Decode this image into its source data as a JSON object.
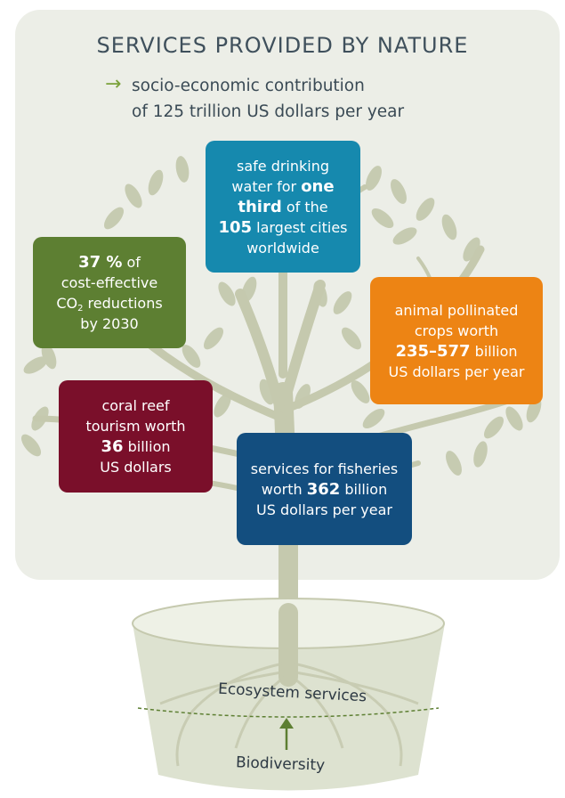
{
  "title": "SERVICES PROVIDED BY NATURE",
  "subtitle": {
    "line1": "socio-economic contribution",
    "line2": "of 125 trillion US dollars per year"
  },
  "boxes": {
    "water": {
      "line1": "safe drinking",
      "line2a": "water for ",
      "line2b": "one",
      "line3a": "third",
      "line3b": " of the",
      "line4a": "105",
      "line4b": " largest cities",
      "line5": "worldwide"
    },
    "co2": {
      "line1a": "37 %",
      "line1b": " of",
      "line2": "cost-effective",
      "line3a": "CO",
      "line3sub": "2",
      "line3b": " reductions",
      "line4": "by 2030"
    },
    "pollinated": {
      "line1": "animal pollinated",
      "line2": "crops worth",
      "line3a": "235–577",
      "line3b": " billion",
      "line4": "US dollars per year"
    },
    "coral": {
      "line1": "coral reef",
      "line2": "tourism worth",
      "line3a": "36",
      "line3b": " billion",
      "line4": "US dollars"
    },
    "fisheries": {
      "line1": "services for fisheries",
      "line2a": "worth ",
      "line2b": "362",
      "line2c": " billion",
      "line3": "US dollars per year"
    }
  },
  "pot": {
    "ecosystem_label": "Ecosystem services",
    "biodiversity_label": "Biodiversity"
  },
  "colors": {
    "panel": "#eceee7",
    "tree": "#c5c9ae",
    "arrow": "#7aa13a",
    "water_box": "#1689ae",
    "co2_box": "#5d7f32",
    "pollinated_box": "#ed8414",
    "coral_box": "#7a0f2a",
    "fisheries_box": "#134e7f"
  }
}
